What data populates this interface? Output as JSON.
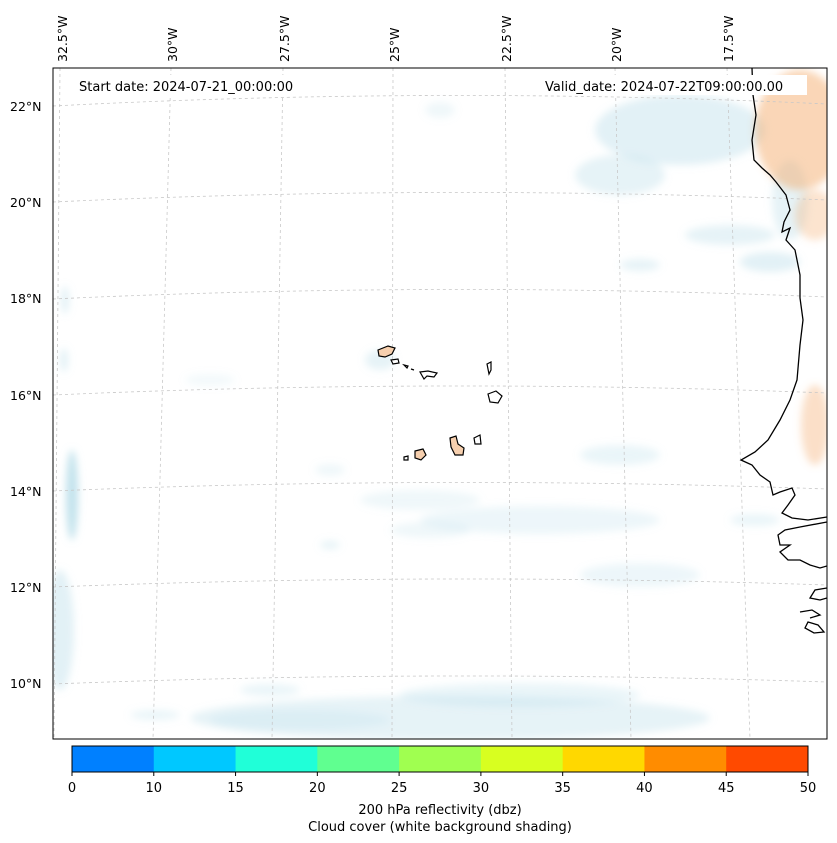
{
  "header": {
    "start_date": "Start date: 2024-07-21_00:00:00",
    "valid_date": "Valid_date: 2024-07-22T09:00:00.00"
  },
  "axes": {
    "lon_labels": [
      "32.5°W",
      "30°W",
      "27.5°W",
      "25°W",
      "22.5°W",
      "20°W",
      "17.5°W"
    ],
    "lat_labels": [
      "22°N",
      "20°N",
      "18°N",
      "16°N",
      "14°N",
      "12°N",
      "10°N"
    ]
  },
  "colorbar": {
    "ticks": [
      "0",
      "10",
      "15",
      "20",
      "25",
      "30",
      "35",
      "40",
      "45",
      "50"
    ],
    "colors": [
      "#0080ff",
      "#00c8ff",
      "#20ffd8",
      "#60ff90",
      "#a0ff50",
      "#d8ff20",
      "#ffd800",
      "#ff8c00",
      "#ff4a00"
    ],
    "label_line1": "200 hPa reflectivity (dbz)",
    "label_line2": "Cloud cover (white background shading)"
  },
  "colors": {
    "cloud": "#add8e6",
    "warm": "#f4a460"
  }
}
